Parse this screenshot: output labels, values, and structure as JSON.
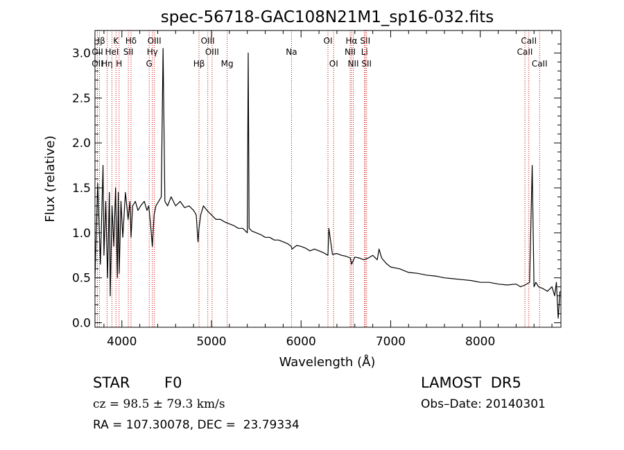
{
  "chart_data": {
    "type": "line",
    "title": "spec-56718-GAC108N21M1_sp16-032.fits",
    "xlabel": "Wavelength (Å)",
    "ylabel": "Flux (relative)",
    "xlim": [
      3700,
      8900
    ],
    "ylim": [
      -0.05,
      3.25
    ],
    "xticks": [
      4000,
      5000,
      6000,
      7000,
      8000
    ],
    "yticks": [
      0.0,
      0.5,
      1.0,
      1.5,
      2.0,
      2.5,
      3.0
    ],
    "xtick_labels": [
      "4000",
      "5000",
      "6000",
      "7000",
      "8000"
    ],
    "ytick_labels": [
      "0.0",
      "0.5",
      "1.0",
      "1.5",
      "2.0",
      "2.5",
      "3.0"
    ],
    "grid": false,
    "line_color": "#000000",
    "marker_color": "#cc0000",
    "series": [
      {
        "x": [
          3700,
          3730,
          3760,
          3790,
          3800,
          3820,
          3840,
          3860,
          3870,
          3890,
          3910,
          3930,
          3950,
          3960,
          3970,
          3990,
          4010,
          4040,
          4070,
          4090,
          4102,
          4120,
          4150,
          4180,
          4210,
          4250,
          4280,
          4300,
          4320,
          4340,
          4360,
          4380,
          4410,
          4440,
          4460,
          4480,
          4510,
          4550,
          4600,
          4650,
          4700,
          4750,
          4800,
          4830,
          4850,
          4861,
          4880,
          4910,
          4950,
          5000,
          5050,
          5100,
          5150,
          5200,
          5250,
          5300,
          5350,
          5400,
          5410,
          5420,
          5450,
          5500,
          5550,
          5600,
          5650,
          5700,
          5750,
          5800,
          5850,
          5890,
          5900,
          5950,
          6000,
          6050,
          6100,
          6150,
          6200,
          6250,
          6300,
          6310,
          6350,
          6400,
          6450,
          6500,
          6550,
          6563,
          6600,
          6650,
          6700,
          6750,
          6800,
          6850,
          6870,
          6900,
          6950,
          7000,
          7100,
          7200,
          7300,
          7400,
          7500,
          7600,
          7700,
          7800,
          7900,
          8000,
          8100,
          8200,
          8300,
          8400,
          8450,
          8500,
          8550,
          8580,
          8600,
          8620,
          8650,
          8700,
          8750,
          8800,
          8830,
          8850,
          8870,
          8890
        ],
        "y": [
          0.5,
          1.55,
          0.65,
          1.75,
          0.75,
          1.35,
          0.5,
          1.45,
          0.3,
          1.3,
          0.85,
          1.5,
          0.5,
          1.45,
          0.55,
          1.35,
          0.95,
          1.45,
          1.15,
          1.35,
          0.95,
          1.3,
          1.35,
          1.25,
          1.3,
          1.35,
          1.25,
          1.3,
          1.1,
          0.85,
          1.2,
          1.3,
          1.35,
          1.4,
          3.05,
          1.35,
          1.3,
          1.4,
          1.3,
          1.35,
          1.28,
          1.3,
          1.25,
          1.2,
          0.9,
          1.05,
          1.2,
          1.3,
          1.25,
          1.2,
          1.15,
          1.15,
          1.12,
          1.1,
          1.08,
          1.05,
          1.05,
          1.0,
          3.0,
          1.05,
          1.02,
          1.0,
          0.98,
          0.95,
          0.95,
          0.92,
          0.92,
          0.9,
          0.88,
          0.85,
          0.82,
          0.86,
          0.85,
          0.83,
          0.8,
          0.82,
          0.8,
          0.78,
          0.75,
          1.05,
          0.76,
          0.77,
          0.75,
          0.74,
          0.72,
          0.65,
          0.73,
          0.72,
          0.7,
          0.72,
          0.75,
          0.7,
          0.82,
          0.72,
          0.66,
          0.62,
          0.6,
          0.56,
          0.55,
          0.53,
          0.52,
          0.5,
          0.49,
          0.48,
          0.47,
          0.45,
          0.45,
          0.43,
          0.42,
          0.43,
          0.4,
          0.42,
          0.45,
          1.75,
          0.4,
          0.45,
          0.4,
          0.38,
          0.35,
          0.4,
          0.3,
          0.45,
          0.05,
          0.35
        ]
      }
    ],
    "line_markers": [
      {
        "label": "Hβ",
        "x": 3750,
        "row": 0
      },
      {
        "label": "OII",
        "x": 3727,
        "row": 1
      },
      {
        "label": "OII",
        "x": 3727,
        "row": 2
      },
      {
        "label": "Hη",
        "x": 3835,
        "row": 2
      },
      {
        "label": "HeI",
        "x": 3889,
        "row": 1
      },
      {
        "label": "K",
        "x": 3934,
        "row": 0
      },
      {
        "label": "H",
        "x": 3969,
        "row": 2
      },
      {
        "label": "Hδ",
        "x": 4102,
        "row": 0
      },
      {
        "label": "SII",
        "x": 4072,
        "row": 1
      },
      {
        "label": "OIII",
        "x": 4363,
        "row": 0
      },
      {
        "label": "Hγ",
        "x": 4341,
        "row": 1
      },
      {
        "label": "G",
        "x": 4305,
        "row": 2
      },
      {
        "label": "OIII",
        "x": 4959,
        "row": 0
      },
      {
        "label": "OIII",
        "x": 5007,
        "row": 1
      },
      {
        "label": "Hβ",
        "x": 4861,
        "row": 2
      },
      {
        "label": "Mg",
        "x": 5175,
        "row": 2
      },
      {
        "label": "Na",
        "x": 5893,
        "row": 1
      },
      {
        "label": "OI",
        "x": 6300,
        "row": 0
      },
      {
        "label": "OI",
        "x": 6364,
        "row": 2
      },
      {
        "label": "Hα",
        "x": 6563,
        "row": 0
      },
      {
        "label": "NII",
        "x": 6548,
        "row": 1
      },
      {
        "label": "NII",
        "x": 6583,
        "row": 2
      },
      {
        "label": "SII",
        "x": 6716,
        "row": 0
      },
      {
        "label": "Li",
        "x": 6708,
        "row": 1
      },
      {
        "label": "SII",
        "x": 6731,
        "row": 2
      },
      {
        "label": "CaII",
        "x": 8542,
        "row": 0
      },
      {
        "label": "CaII",
        "x": 8498,
        "row": 1
      },
      {
        "label": "CaII",
        "x": 8662,
        "row": 2
      }
    ]
  },
  "info": {
    "object_class": "STAR",
    "subclass": "F0",
    "survey": "LAMOST  DR5",
    "cz": "cz = 98.5 ± 79.3 km/s",
    "obs_date": "Obs–Date: 20140301",
    "coords": "RA = 107.30078, DEC =  23.79334"
  }
}
